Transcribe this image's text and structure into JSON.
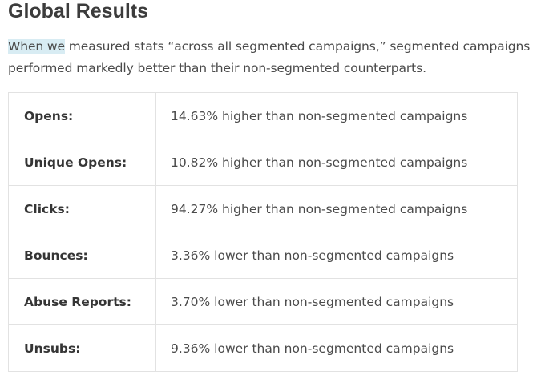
{
  "heading": "Global Results",
  "intro": {
    "highlighted": "When we",
    "rest": " measured stats “across all segmented campaigns,” segmented campaigns performed markedly better than their non-segmented counterparts."
  },
  "colors": {
    "highlight": "#d8ecf3",
    "border": "#e2e2e2",
    "text": "#404040"
  },
  "results": [
    {
      "label": "Opens:",
      "value": "14.63% higher than non-segmented campaigns"
    },
    {
      "label": "Unique Opens:",
      "value": "10.82% higher than non-segmented campaigns"
    },
    {
      "label": "Clicks:",
      "value": "94.27% higher than non-segmented campaigns"
    },
    {
      "label": "Bounces:",
      "value": "3.36% lower than non-segmented campaigns"
    },
    {
      "label": "Abuse Reports:",
      "value": "3.70% lower than non-segmented campaigns"
    },
    {
      "label": "Unsubs:",
      "value": "9.36% lower than non-segmented campaigns"
    }
  ]
}
